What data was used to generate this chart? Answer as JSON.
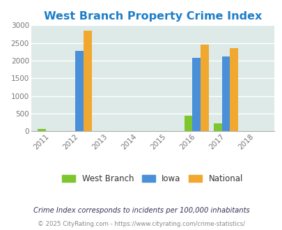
{
  "title": "West Branch Property Crime Index",
  "title_color": "#1e7ec8",
  "title_fontsize": 11.5,
  "years": [
    2011,
    2012,
    2013,
    2014,
    2015,
    2016,
    2017,
    2018
  ],
  "bar_width": 0.28,
  "data": {
    "West Branch": {
      "2011": 60,
      "2012": 0,
      "2013": 0,
      "2014": 0,
      "2015": 0,
      "2016": 435,
      "2017": 220,
      "2018": 0
    },
    "Iowa": {
      "2011": 0,
      "2012": 2270,
      "2013": 0,
      "2014": 0,
      "2015": 0,
      "2016": 2080,
      "2017": 2110,
      "2018": 0
    },
    "National": {
      "2011": 0,
      "2012": 2850,
      "2013": 0,
      "2014": 0,
      "2015": 0,
      "2016": 2450,
      "2017": 2360,
      "2018": 0
    }
  },
  "colors": {
    "West Branch": "#7dc62e",
    "Iowa": "#4a90d9",
    "National": "#f0a830"
  },
  "ylim": [
    0,
    3000
  ],
  "yticks": [
    0,
    500,
    1000,
    1500,
    2000,
    2500,
    3000
  ],
  "bg_color": "#ddeae8",
  "grid_color": "#ffffff",
  "footnote1": "Crime Index corresponds to incidents per 100,000 inhabitants",
  "footnote2": "© 2025 CityRating.com - https://www.cityrating.com/crime-statistics/",
  "footnote1_color": "#333355",
  "footnote2_color": "#888888"
}
